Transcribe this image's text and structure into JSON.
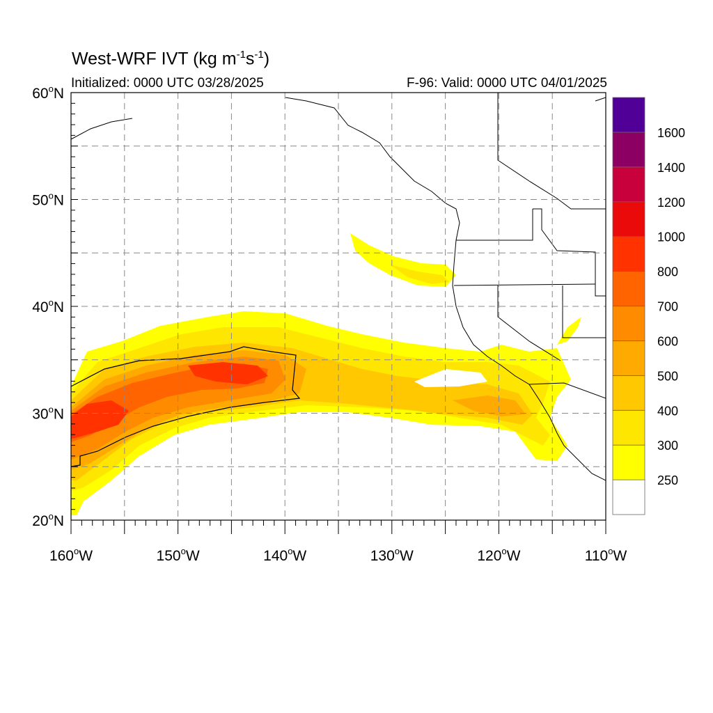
{
  "title": {
    "prefix": "West-WRF IVT (kg m",
    "sup1": "-1",
    "mid": "s",
    "sup2": "-1",
    "suffix": ")"
  },
  "initialized": "Initialized: 0000 UTC 03/28/2025",
  "valid": "F-96: Valid: 0000 UTC 04/01/2025",
  "map": {
    "lon_range": [
      -160,
      -110
    ],
    "lat_range": [
      20,
      60
    ],
    "lon_ticks": [
      {
        "value": -160,
        "label": "160°W"
      },
      {
        "value": -150,
        "label": "150°W"
      },
      {
        "value": -140,
        "label": "140°W"
      },
      {
        "value": -130,
        "label": "130°W"
      },
      {
        "value": -120,
        "label": "120°W"
      },
      {
        "value": -110,
        "label": "110°W"
      }
    ],
    "lat_ticks": [
      {
        "value": 20,
        "label": "20°N"
      },
      {
        "value": 30,
        "label": "30°N"
      },
      {
        "value": 40,
        "label": "40°N"
      },
      {
        "value": 50,
        "label": "50°N"
      },
      {
        "value": 60,
        "label": "60°N"
      }
    ],
    "grid_lons": [
      -155,
      -150,
      -145,
      -140,
      -135,
      -130,
      -125,
      -120,
      -115
    ],
    "grid_lats": [
      25,
      30,
      35,
      40,
      45,
      50,
      55
    ]
  },
  "colorbar": {
    "levels": [
      {
        "color": "#ffffff",
        "label": ""
      },
      {
        "color": "#ffff00",
        "label": "250"
      },
      {
        "color": "#ffe600",
        "label": "300"
      },
      {
        "color": "#ffc800",
        "label": "400"
      },
      {
        "color": "#ffaa00",
        "label": "500"
      },
      {
        "color": "#ff8c00",
        "label": "600"
      },
      {
        "color": "#ff6400",
        "label": "700"
      },
      {
        "color": "#ff3200",
        "label": "800"
      },
      {
        "color": "#eb0a0a",
        "label": "1000"
      },
      {
        "color": "#c8003c",
        "label": "1200"
      },
      {
        "color": "#8c0064",
        "label": "1400"
      },
      {
        "color": "#500096",
        "label": "1600"
      }
    ]
  }
}
